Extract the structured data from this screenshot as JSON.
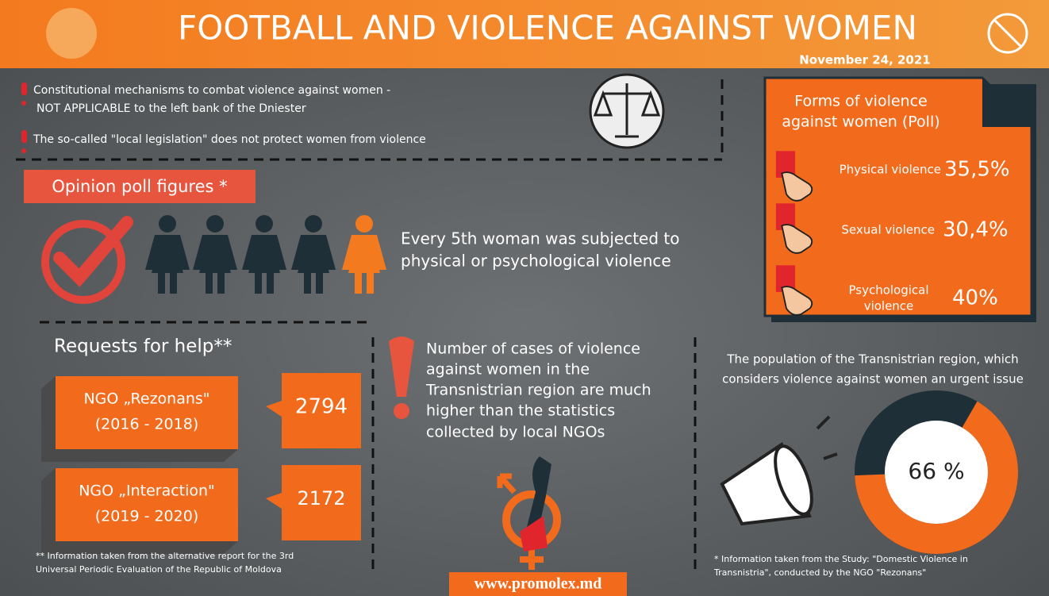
{
  "header": {
    "title": "FOOTBALL AND VIOLENCE AGAINST WOMEN",
    "date": "November 24, 2021"
  },
  "notes": [
    [
      "Constitutional mechanisms to combat violence against women -",
      "NOT APPLICABLE to the left bank of the Dniester"
    ],
    [
      "The so-called \"local legislation\" does not protect women from violence"
    ]
  ],
  "poll": {
    "heading": "Opinion poll figures *",
    "statement": [
      "Every 5th woman was subjected to",
      "physical or psychological violence"
    ]
  },
  "forms": {
    "title": [
      "Forms of violence",
      "against women (Poll)"
    ],
    "items": [
      {
        "label": [
          "Physical violence"
        ],
        "value": "35,5%"
      },
      {
        "label": [
          "Sexual violence"
        ],
        "value": "30,4%"
      },
      {
        "label": [
          "Psychological",
          "violence"
        ],
        "value": "40%"
      }
    ]
  },
  "requests": {
    "heading": "Requests for help**",
    "items": [
      {
        "name": "NGO „Rezonans\"",
        "period": "(2016 - 2018)",
        "count": 2794
      },
      {
        "name": "NGO „Interaction\"",
        "period": "(2019 - 2020)",
        "count": 2172
      }
    ],
    "footnote": [
      "** Information taken from the alternative report for the 3rd",
      "Universal Periodic Evaluation of the Republic of Moldova"
    ]
  },
  "cases": {
    "text": [
      "Number of cases of violence",
      "against women in the",
      "Transnistrian region are much",
      "higher than the statistics",
      "collected by local NGOs"
    ]
  },
  "population": {
    "text": [
      "The population of the Transnistrian region, which",
      "considers violence against women an urgent issue"
    ],
    "donut": {
      "value": 66,
      "label": "66 %"
    },
    "footnote": [
      "* Information taken from the Study: \"Domestic Violence in",
      "Transnistria\", conducted by the NGO \"Rezonans\""
    ]
  },
  "website": "www.promolex.md"
}
